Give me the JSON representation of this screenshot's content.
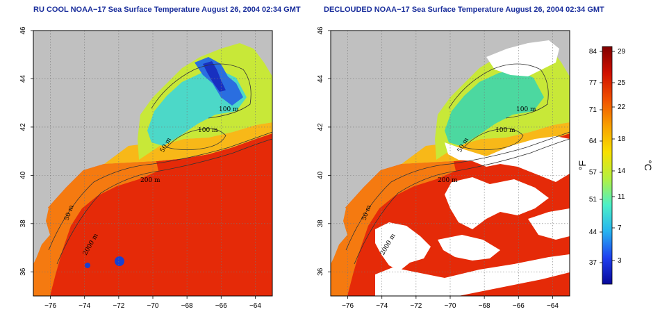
{
  "panels": [
    {
      "title": "RU COOL NOAA−17 Sea Surface Temperature August 26, 2004 02:34 GMT",
      "mode": "raw"
    },
    {
      "title": "DECLOUDED NOAA−17 Sea Surface Temperature August 26, 2004 02:34 GMT",
      "mode": "declouded"
    }
  ],
  "map": {
    "lon_range": [
      -77,
      -63
    ],
    "lat_range": [
      35,
      46
    ],
    "x_ticks": [
      -76,
      -74,
      -72,
      -70,
      -68,
      -66,
      -64
    ],
    "x_tick_labels": [
      "−76",
      "−74",
      "−72",
      "−70",
      "−68",
      "−66",
      "−64"
    ],
    "y_ticks": [
      36,
      38,
      40,
      42,
      44,
      46
    ],
    "y_tick_labels": [
      "36",
      "38",
      "40",
      "42",
      "44",
      "46"
    ],
    "contour_labels": [
      "100 m",
      "100 m",
      "50 m",
      "200 m",
      "50 m",
      "2000 m"
    ],
    "land_color": "#c0c0c0",
    "cloud_color": "#ffffff",
    "grid": true
  },
  "colorbar": {
    "fahrenheit_ticks": [
      "84",
      "77",
      "71",
      "64",
      "57",
      "51",
      "44",
      "37"
    ],
    "celsius_ticks": [
      "29",
      "25",
      "22",
      "18",
      "14",
      "11",
      "7",
      "3"
    ],
    "fahrenheit_unit": "°F",
    "celsius_unit": "°C",
    "colors": [
      "#08089a",
      "#1f3ff0",
      "#27b4f0",
      "#4cf0c8",
      "#b4f040",
      "#f8e000",
      "#f8a000",
      "#f05000",
      "#d01000",
      "#800000"
    ]
  }
}
